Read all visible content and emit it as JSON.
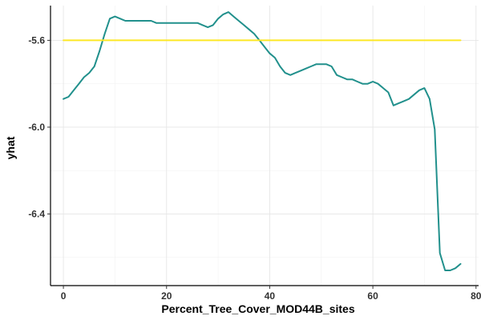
{
  "chart_data": {
    "type": "line",
    "xlabel": "Percent_Tree_Cover_MOD44B_sites",
    "ylabel": "yhat",
    "xlim": [
      -2.5,
      80.5
    ],
    "ylim": [
      -6.73,
      -5.44
    ],
    "x_ticks": [
      0,
      20,
      40,
      60,
      80
    ],
    "y_ticks": [
      -6.4,
      -6.0,
      -5.6
    ],
    "y_tick_labels": [
      "-6.4",
      "-6.0",
      "-5.6"
    ],
    "grid": true,
    "series": [
      {
        "color": "#21908C",
        "x": [
          0,
          1,
          2,
          3,
          4,
          5,
          6,
          7,
          8,
          9,
          10,
          11,
          12,
          13,
          14,
          15,
          16,
          17,
          18,
          19,
          20,
          21,
          22,
          23,
          24,
          25,
          26,
          27,
          28,
          29,
          30,
          31,
          32,
          33,
          34,
          35,
          36,
          37,
          38,
          39,
          40,
          41,
          42,
          43,
          44,
          45,
          46,
          47,
          48,
          49,
          50,
          51,
          52,
          53,
          54,
          55,
          56,
          57,
          58,
          59,
          60,
          61,
          62,
          63,
          64,
          65,
          66,
          67,
          68,
          69,
          70,
          71,
          72,
          73,
          74,
          75,
          76,
          77
        ],
        "y": [
          -5.87,
          -5.86,
          -5.83,
          -5.8,
          -5.77,
          -5.75,
          -5.72,
          -5.65,
          -5.57,
          -5.5,
          -5.49,
          -5.5,
          -5.51,
          -5.51,
          -5.51,
          -5.51,
          -5.51,
          -5.51,
          -5.52,
          -5.52,
          -5.52,
          -5.52,
          -5.52,
          -5.52,
          -5.52,
          -5.52,
          -5.52,
          -5.53,
          -5.54,
          -5.53,
          -5.5,
          -5.48,
          -5.47,
          -5.49,
          -5.51,
          -5.53,
          -5.55,
          -5.57,
          -5.6,
          -5.63,
          -5.66,
          -5.68,
          -5.72,
          -5.75,
          -5.76,
          -5.75,
          -5.74,
          -5.73,
          -5.72,
          -5.71,
          -5.71,
          -5.71,
          -5.72,
          -5.76,
          -5.77,
          -5.78,
          -5.78,
          -5.79,
          -5.8,
          -5.8,
          -5.79,
          -5.8,
          -5.82,
          -5.84,
          -5.9,
          -5.89,
          -5.88,
          -5.87,
          -5.85,
          -5.83,
          -5.82,
          -5.87,
          -6.01,
          -6.58,
          -6.66,
          -6.66,
          -6.65,
          -6.63
        ]
      },
      {
        "color": "#FDE725",
        "x": [
          0,
          77
        ],
        "y": [
          -5.6,
          -5.6
        ]
      }
    ]
  }
}
